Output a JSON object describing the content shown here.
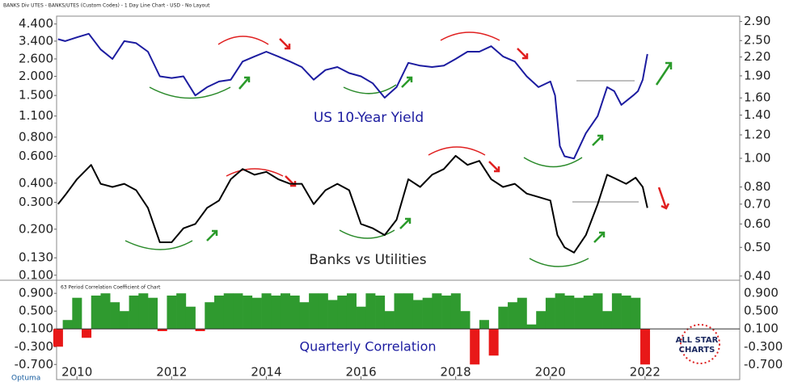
{
  "header": "BANKS Div UTES - BANKS/UTES (Custom Codes) - 1 Day Line Chart - USD - No Layout",
  "footer": "Optuma",
  "logo": [
    "ALL STAR",
    "CHARTS"
  ],
  "chart_data": [
    {
      "type": "line",
      "xlim": [
        2009.57,
        2024
      ],
      "ylim": [
        0.095,
        4.66
      ],
      "log_y": true,
      "yticks": [
        {
          "value": 4.4,
          "label": "4.400"
        },
        {
          "value": 3.4,
          "label": "3.400"
        },
        {
          "value": 2.6,
          "label": "2.600"
        },
        {
          "value": 2.0,
          "label": "2.000"
        },
        {
          "value": 1.5,
          "label": "1.500"
        },
        {
          "value": 1.1,
          "label": "1.100"
        },
        {
          "value": 0.8,
          "label": "0.800"
        },
        {
          "value": 0.6,
          "label": "0.600"
        },
        {
          "value": 0.4,
          "label": "0.400"
        },
        {
          "value": 0.3,
          "label": "0.300"
        },
        {
          "value": 0.2,
          "label": "0.200"
        },
        {
          "value": 0.13,
          "label": "0.130"
        },
        {
          "value": 0.1,
          "label": "0.100"
        }
      ],
      "y2lim": [
        0.392,
        2.93
      ],
      "log_y2": true,
      "y2ticks": [
        {
          "value": 2.9,
          "label": "2.90"
        },
        {
          "value": 2.5,
          "label": "2.50"
        },
        {
          "value": 2.2,
          "label": "2.20"
        },
        {
          "value": 1.9,
          "label": "1.90"
        },
        {
          "value": 1.6,
          "label": "1.60"
        },
        {
          "value": 1.4,
          "label": "1.40"
        },
        {
          "value": 1.2,
          "label": "1.20"
        },
        {
          "value": 1.0,
          "label": "1.00"
        },
        {
          "value": 0.8,
          "label": "0.80"
        },
        {
          "value": 0.7,
          "label": "0.70"
        },
        {
          "value": 0.6,
          "label": "0.60"
        },
        {
          "value": 0.5,
          "label": "0.50"
        },
        {
          "value": 0.4,
          "label": "0.40"
        }
      ],
      "annotations": [
        "US 10-Year Yield",
        "Banks vs Utilities"
      ],
      "series": [
        {
          "name": "US 10-Year Yield",
          "color": "#1c1ca0",
          "axis": "y",
          "x": [
            2009.6,
            2009.75,
            2010,
            2010.25,
            2010.5,
            2010.75,
            2011,
            2011.25,
            2011.5,
            2011.75,
            2012,
            2012.25,
            2012.5,
            2012.75,
            2013,
            2013.25,
            2013.5,
            2013.75,
            2014,
            2014.25,
            2014.5,
            2014.75,
            2015,
            2015.25,
            2015.5,
            2015.75,
            2016,
            2016.25,
            2016.5,
            2016.75,
            2017,
            2017.25,
            2017.5,
            2017.75,
            2018,
            2018.25,
            2018.5,
            2018.75,
            2019,
            2019.25,
            2019.5,
            2019.75,
            2020,
            2020.1,
            2020.2,
            2020.3,
            2020.5,
            2020.75,
            2021,
            2021.2,
            2021.35,
            2021.5,
            2021.75,
            2021.85,
            2021.95,
            2022.05
          ],
          "values": [
            3.5,
            3.4,
            3.6,
            3.8,
            3.0,
            2.6,
            3.4,
            3.3,
            2.9,
            2.0,
            1.95,
            2.0,
            1.5,
            1.7,
            1.85,
            1.9,
            2.5,
            2.7,
            2.9,
            2.7,
            2.5,
            2.3,
            1.9,
            2.2,
            2.3,
            2.1,
            2.0,
            1.8,
            1.45,
            1.7,
            2.45,
            2.35,
            2.3,
            2.35,
            2.6,
            2.9,
            2.9,
            3.15,
            2.7,
            2.5,
            2.0,
            1.7,
            1.85,
            1.5,
            0.7,
            0.6,
            0.58,
            0.85,
            1.1,
            1.7,
            1.6,
            1.3,
            1.5,
            1.6,
            1.9,
            2.8
          ]
        },
        {
          "name": "Banks vs Utilities",
          "color": "#000000",
          "axis": "y2",
          "x": [
            2009.6,
            2009.75,
            2010,
            2010.3,
            2010.5,
            2010.75,
            2011,
            2011.25,
            2011.5,
            2011.75,
            2012,
            2012.25,
            2012.5,
            2012.75,
            2013,
            2013.25,
            2013.5,
            2013.75,
            2014,
            2014.25,
            2014.5,
            2014.75,
            2015,
            2015.25,
            2015.5,
            2015.75,
            2016,
            2016.25,
            2016.5,
            2016.75,
            2017,
            2017.25,
            2017.5,
            2017.75,
            2018,
            2018.25,
            2018.5,
            2018.75,
            2019,
            2019.25,
            2019.5,
            2019.75,
            2020,
            2020.15,
            2020.3,
            2020.5,
            2020.75,
            2021,
            2021.2,
            2021.4,
            2021.6,
            2021.8,
            2021.95,
            2022.05
          ],
          "values": [
            0.7,
            0.75,
            0.85,
            0.95,
            0.82,
            0.8,
            0.82,
            0.78,
            0.68,
            0.52,
            0.52,
            0.58,
            0.6,
            0.68,
            0.72,
            0.85,
            0.92,
            0.88,
            0.9,
            0.85,
            0.82,
            0.82,
            0.7,
            0.78,
            0.82,
            0.78,
            0.6,
            0.58,
            0.55,
            0.62,
            0.85,
            0.8,
            0.88,
            0.92,
            1.02,
            0.95,
            0.98,
            0.85,
            0.8,
            0.82,
            0.76,
            0.74,
            0.72,
            0.55,
            0.5,
            0.48,
            0.55,
            0.7,
            0.88,
            0.85,
            0.82,
            0.86,
            0.8,
            0.68
          ]
        }
      ]
    },
    {
      "type": "area",
      "subtitle": "63 Period Correlation Coefficient of Chart",
      "annotation": "Quarterly Correlation",
      "xlim": [
        2009.57,
        2024
      ],
      "xticks": [
        2010,
        2012,
        2014,
        2016,
        2018,
        2020,
        2022
      ],
      "ylim": [
        -1.04,
        1.14
      ],
      "yticks": [
        {
          "value": 0.9,
          "label": "0.900"
        },
        {
          "value": 0.5,
          "label": "0.500"
        },
        {
          "value": 0.1,
          "label": "0.100"
        },
        {
          "value": -0.3,
          "label": "-0.300"
        },
        {
          "value": -0.7,
          "label": "-0.700"
        }
      ],
      "baseline": 0.1,
      "color_positive": "#2f9a2f",
      "color_negative": "#e81818",
      "x": [
        2009.6,
        2009.8,
        2010.0,
        2010.2,
        2010.4,
        2010.6,
        2010.8,
        2011.0,
        2011.2,
        2011.4,
        2011.6,
        2011.8,
        2012.0,
        2012.2,
        2012.4,
        2012.6,
        2012.8,
        2013.0,
        2013.2,
        2013.4,
        2013.6,
        2013.8,
        2014.0,
        2014.2,
        2014.4,
        2014.6,
        2014.8,
        2015.0,
        2015.2,
        2015.4,
        2015.6,
        2015.8,
        2016.0,
        2016.2,
        2016.4,
        2016.6,
        2016.8,
        2017.0,
        2017.2,
        2017.4,
        2017.6,
        2017.8,
        2018.0,
        2018.2,
        2018.4,
        2018.6,
        2018.8,
        2019.0,
        2019.2,
        2019.4,
        2019.6,
        2019.8,
        2020.0,
        2020.2,
        2020.4,
        2020.6,
        2020.8,
        2021.0,
        2021.2,
        2021.4,
        2021.6,
        2021.8,
        2022.0
      ],
      "values": [
        -0.3,
        0.3,
        0.8,
        -0.1,
        0.85,
        0.9,
        0.7,
        0.5,
        0.85,
        0.9,
        0.8,
        0.05,
        0.85,
        0.9,
        0.6,
        0.05,
        0.7,
        0.85,
        0.9,
        0.9,
        0.85,
        0.8,
        0.9,
        0.85,
        0.9,
        0.85,
        0.7,
        0.9,
        0.9,
        0.75,
        0.85,
        0.9,
        0.6,
        0.9,
        0.85,
        0.5,
        0.9,
        0.9,
        0.75,
        0.8,
        0.9,
        0.85,
        0.9,
        0.5,
        -0.7,
        0.3,
        -0.5,
        0.6,
        0.7,
        0.8,
        0.2,
        0.5,
        0.8,
        0.9,
        0.85,
        0.8,
        0.85,
        0.9,
        0.5,
        0.9,
        0.85,
        0.8,
        -0.7
      ]
    }
  ]
}
